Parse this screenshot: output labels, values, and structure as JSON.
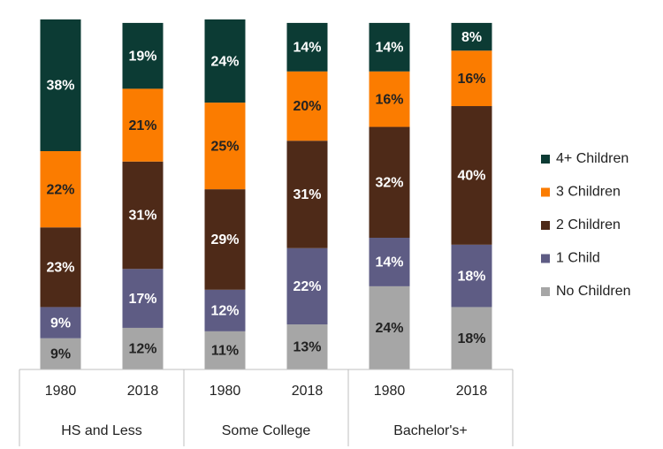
{
  "chart_data": {
    "type": "stacked_bar",
    "categories": [
      "1980",
      "2018",
      "1980",
      "2018",
      "1980",
      "2018"
    ],
    "groups": [
      "HS and Less",
      "Some College",
      "Bachelor's+"
    ],
    "series": [
      {
        "name": "No Children",
        "color": "#a6a6a6",
        "values": [
          9,
          12,
          11,
          13,
          24,
          18
        ],
        "value_labels": [
          "9%",
          "12%",
          "11%",
          "13%",
          "24%",
          "18%"
        ]
      },
      {
        "name": "1 Child",
        "color": "#5e5c84",
        "values": [
          9,
          17,
          12,
          22,
          14,
          18
        ],
        "value_labels": [
          "9%",
          "17%",
          "12%",
          "22%",
          "14%",
          "18%"
        ]
      },
      {
        "name": "2 Children",
        "color": "#4e2a18",
        "values": [
          23,
          31,
          29,
          31,
          32,
          40
        ],
        "value_labels": [
          "23%",
          "31%",
          "29%",
          "31%",
          "32%",
          "40%"
        ]
      },
      {
        "name": "3 Children",
        "color": "#fb7c00",
        "values": [
          22,
          21,
          25,
          20,
          16,
          16
        ],
        "value_labels": [
          "22%",
          "21%",
          "25%",
          "20%",
          "16%",
          "16%"
        ]
      },
      {
        "name": "4+ Children",
        "color": "#0c3b34",
        "values": [
          38,
          19,
          24,
          14,
          14,
          8
        ],
        "value_labels": [
          "38%",
          "19%",
          "24%",
          "14%",
          "14%",
          "8%"
        ]
      }
    ]
  }
}
